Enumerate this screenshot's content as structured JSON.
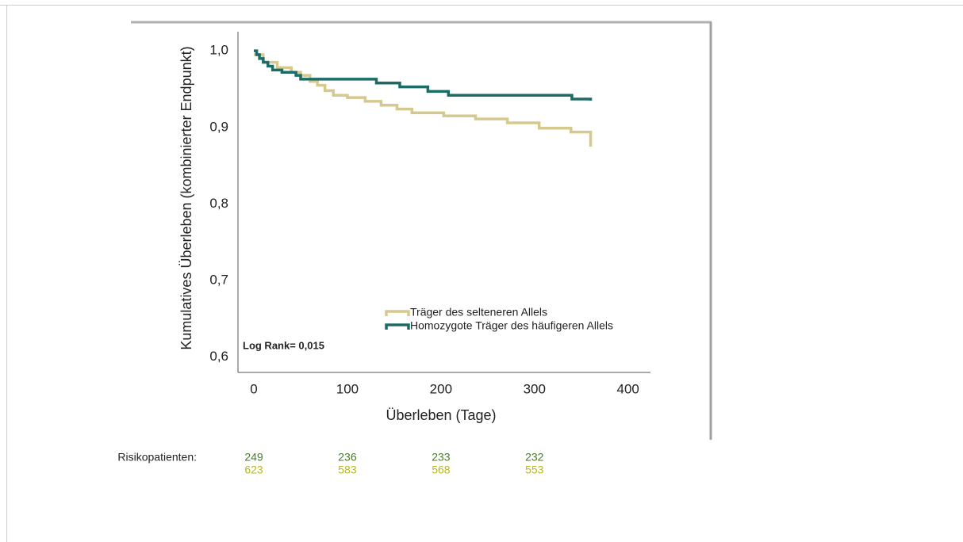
{
  "chart_data": {
    "type": "step",
    "xlabel": "Überleben (Tage)",
    "ylabel": "Kumulatives Überleben (kombinierter Endpunkt)",
    "annotation": "Log Rank= 0,015",
    "xlim": [
      -17,
      424
    ],
    "ylim": [
      0.58,
      1.025
    ],
    "xticks": [
      0,
      100,
      200,
      300,
      400
    ],
    "yticks": [
      {
        "value": 0.6,
        "label": "0,6"
      },
      {
        "value": 0.7,
        "label": "0,7"
      },
      {
        "value": 0.8,
        "label": "0,8"
      },
      {
        "value": 0.9,
        "label": "0,9"
      },
      {
        "value": 1.0,
        "label": "1,0"
      }
    ],
    "grid": false,
    "legend": "lower right",
    "series": [
      {
        "name": "Träger des selteneren Allels",
        "color": "#d6c98e",
        "x": [
          0,
          10,
          25,
          40,
          50,
          60,
          68,
          76,
          85,
          100,
          119,
          136,
          153,
          169,
          203,
          237,
          271,
          305,
          339,
          360
        ],
        "values": [
          0.995,
          0.985,
          0.978,
          0.972,
          0.968,
          0.96,
          0.955,
          0.948,
          0.942,
          0.939,
          0.934,
          0.929,
          0.924,
          0.919,
          0.915,
          0.911,
          0.906,
          0.899,
          0.894,
          0.875
        ]
      },
      {
        "name": "Homozygote Träger des häufigeren Allels",
        "color": "#1d6b66",
        "x": [
          0,
          3,
          6,
          10,
          15,
          20,
          30,
          45,
          50,
          131,
          156,
          186,
          208,
          340,
          360
        ],
        "values": [
          1.0,
          0.995,
          0.99,
          0.985,
          0.98,
          0.975,
          0.972,
          0.968,
          0.963,
          0.958,
          0.953,
          0.947,
          0.942,
          0.937,
          0.935
        ]
      }
    ]
  },
  "at_risk": {
    "label": "Risikopatienten:",
    "x": [
      0,
      100,
      200,
      300
    ],
    "rows": [
      {
        "color": "#4a7a2a",
        "values": [
          249,
          236,
          233,
          232
        ]
      },
      {
        "color": "#b8b820",
        "values": [
          623,
          583,
          568,
          553
        ]
      }
    ]
  }
}
